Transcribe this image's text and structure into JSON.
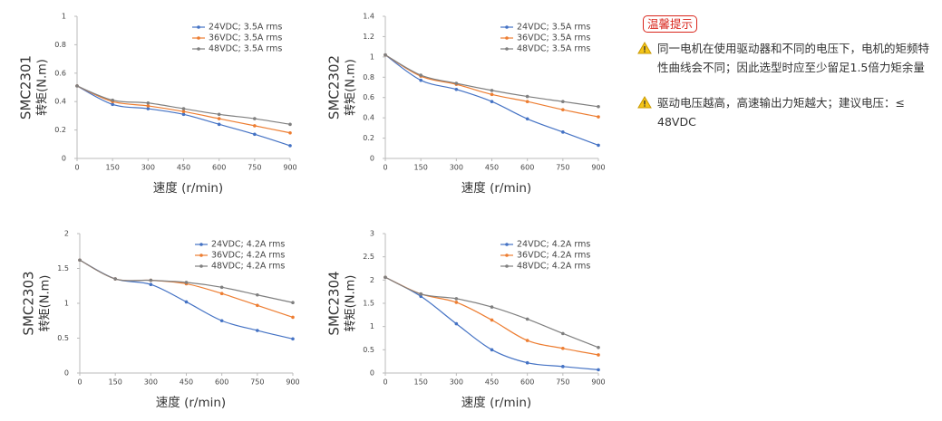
{
  "chart_data": [
    {
      "type": "line",
      "model": "SMC2301",
      "y_label": "转矩(N.m)",
      "x_label": "速度 (r/min)",
      "x": [
        0,
        150,
        300,
        450,
        600,
        750,
        900
      ],
      "xlim": [
        0,
        900
      ],
      "xticks": [
        0,
        150,
        300,
        450,
        600,
        750,
        900
      ],
      "ylim": [
        0,
        1
      ],
      "yticks": [
        0,
        0.2,
        0.4,
        0.6,
        0.8,
        1
      ],
      "legend": "upper right",
      "series": [
        {
          "name": "24VDC; 3.5A rms",
          "color": "#4472c4",
          "values": [
            0.51,
            0.38,
            0.35,
            0.31,
            0.24,
            0.17,
            0.09
          ]
        },
        {
          "name": "36VDC; 3.5A rms",
          "color": "#ed7d31",
          "values": [
            0.51,
            0.4,
            0.37,
            0.33,
            0.28,
            0.23,
            0.18
          ]
        },
        {
          "name": "48VDC; 3.5A rms",
          "color": "#7f7f7f",
          "values": [
            0.51,
            0.41,
            0.39,
            0.35,
            0.31,
            0.28,
            0.24
          ]
        }
      ]
    },
    {
      "type": "line",
      "model": "SMC2302",
      "y_label": "转矩(N.m)",
      "x_label": "速度 (r/min)",
      "x": [
        0,
        150,
        300,
        450,
        600,
        750,
        900
      ],
      "xlim": [
        0,
        900
      ],
      "xticks": [
        0,
        150,
        300,
        450,
        600,
        750,
        900
      ],
      "ylim": [
        0,
        1.4
      ],
      "yticks": [
        0,
        0.2,
        0.4,
        0.6,
        0.8,
        1,
        1.2,
        1.4
      ],
      "legend": "upper right",
      "series": [
        {
          "name": "24VDC; 3.5A rms",
          "color": "#4472c4",
          "values": [
            1.02,
            0.77,
            0.68,
            0.56,
            0.39,
            0.26,
            0.13
          ]
        },
        {
          "name": "36VDC; 3.5A rms",
          "color": "#ed7d31",
          "values": [
            1.02,
            0.81,
            0.73,
            0.63,
            0.56,
            0.48,
            0.41
          ]
        },
        {
          "name": "48VDC; 3.5A rms",
          "color": "#7f7f7f",
          "values": [
            1.02,
            0.82,
            0.74,
            0.67,
            0.61,
            0.56,
            0.51
          ]
        }
      ]
    },
    {
      "type": "line",
      "model": "SMC2303",
      "y_label": "转矩(N.m)",
      "x_label": "速度 (r/min)",
      "x": [
        0,
        150,
        300,
        450,
        600,
        750,
        900
      ],
      "xlim": [
        0,
        900
      ],
      "xticks": [
        0,
        150,
        300,
        450,
        600,
        750,
        900
      ],
      "ylim": [
        0,
        2
      ],
      "yticks": [
        0,
        0.5,
        1,
        1.5,
        2
      ],
      "legend": "upper right",
      "series": [
        {
          "name": "24VDC; 4.2A rms",
          "color": "#4472c4",
          "values": [
            1.62,
            1.35,
            1.27,
            1.02,
            0.75,
            0.61,
            0.49
          ]
        },
        {
          "name": "36VDC; 4.2A rms",
          "color": "#ed7d31",
          "values": [
            1.62,
            1.35,
            1.33,
            1.28,
            1.14,
            0.97,
            0.8
          ]
        },
        {
          "name": "48VDC; 4.2A rms",
          "color": "#7f7f7f",
          "values": [
            1.62,
            1.35,
            1.33,
            1.3,
            1.23,
            1.12,
            1.01
          ]
        }
      ]
    },
    {
      "type": "line",
      "model": "SMC2304",
      "y_label": "转矩(N.m)",
      "x_label": "速度 (r/min)",
      "x": [
        0,
        150,
        300,
        450,
        600,
        750,
        900
      ],
      "xlim": [
        0,
        900
      ],
      "xticks": [
        0,
        150,
        300,
        450,
        600,
        750,
        900
      ],
      "ylim": [
        0,
        3
      ],
      "yticks": [
        0,
        0.5,
        1,
        1.5,
        2,
        2.5,
        3
      ],
      "legend": "upper right",
      "series": [
        {
          "name": "24VDC; 4.2A rms",
          "color": "#4472c4",
          "values": [
            2.06,
            1.65,
            1.06,
            0.5,
            0.22,
            0.14,
            0.07
          ]
        },
        {
          "name": "36VDC; 4.2A rms",
          "color": "#ed7d31",
          "values": [
            2.06,
            1.7,
            1.52,
            1.14,
            0.7,
            0.53,
            0.39
          ]
        },
        {
          "name": "48VDC; 4.2A rms",
          "color": "#7f7f7f",
          "values": [
            2.06,
            1.7,
            1.6,
            1.42,
            1.16,
            0.85,
            0.55
          ]
        }
      ]
    }
  ],
  "tips": {
    "badge": "温馨提示",
    "items": [
      "同一电机在使用驱动器和不同的电压下，电机的矩频特性曲线会不同；因此选型时应至少留足1.5倍力矩余量",
      "驱动电压越高，高速输出力矩越大；建议电压：≤ 48VDC"
    ]
  }
}
